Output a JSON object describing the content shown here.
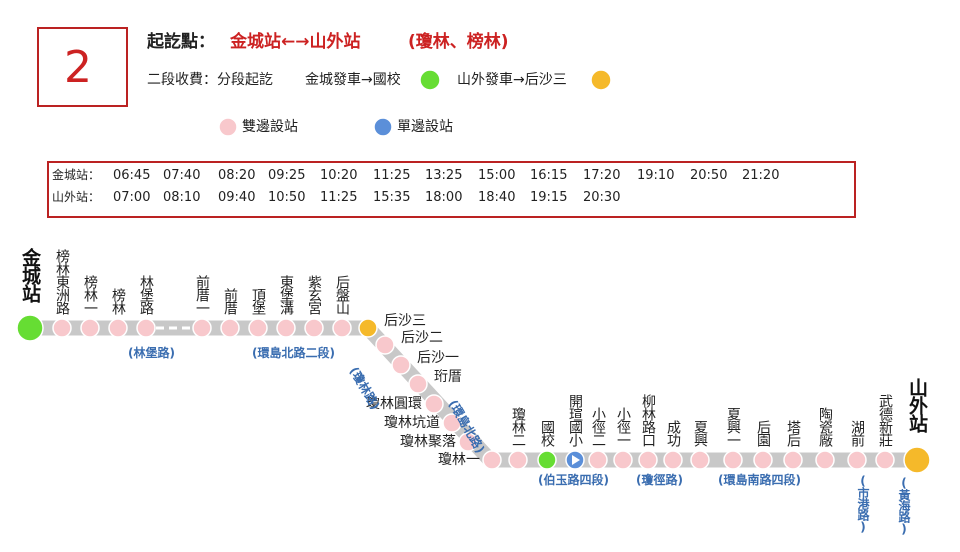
{
  "header": {
    "route": "2",
    "start_label": "起訖點：",
    "route_name": "金城站←→山外站",
    "via": "(瓊林、榜林)"
  },
  "fare": {
    "label": "二段收費：分段起訖",
    "zone1": "金城發車→國校",
    "zone1_color": "#66dd33",
    "zone2": "山外發車→后沙三",
    "zone2_color": "#f5b92a"
  },
  "legend": {
    "both": "雙邊設站",
    "both_color": "#f8c8cc",
    "single": "單邊設站",
    "single_color": "#5b8fd9"
  },
  "schedule": [
    {
      "station": "金城站：",
      "times": [
        "06:45",
        "07:40",
        "08:20",
        "09:25",
        "10:20",
        "11:25",
        "13:25",
        "15:00",
        "16:15",
        "17:20",
        "19:10",
        "20:50",
        "21:20"
      ]
    },
    {
      "station": "山外站：",
      "times": [
        "07:00",
        "08:10",
        "09:40",
        "10:50",
        "11:25",
        "15:35",
        "18:00",
        "18:40",
        "19:15",
        "20:30"
      ]
    }
  ],
  "stops": [
    {
      "label": "金城站",
      "color": "#66dd33"
    },
    {
      "label": "榜林東洲路",
      "color": "#f8c8cc"
    },
    {
      "label": "榜林一",
      "color": "#f8c8cc"
    },
    {
      "label": "榜林",
      "color": "#f8c8cc"
    },
    {
      "label": "林堡路",
      "color": "#f8c8cc"
    },
    {
      "label": "前厝一",
      "color": "#f8c8cc"
    },
    {
      "label": "前厝",
      "color": "#f8c8cc"
    },
    {
      "label": "頂堡",
      "color": "#f8c8cc"
    },
    {
      "label": "東堡溝",
      "color": "#f8c8cc"
    },
    {
      "label": "紫玄宮",
      "color": "#f8c8cc"
    },
    {
      "label": "后盤山",
      "color": "#f8c8cc"
    },
    {
      "label": "后沙三",
      "color": "#f5b92a"
    },
    {
      "label": "后沙二",
      "color": "#f8c8cc"
    },
    {
      "label": "后沙一",
      "color": "#f8c8cc"
    },
    {
      "label": "珩厝",
      "color": "#f8c8cc"
    },
    {
      "label": "瓊林圓環",
      "color": "#f8c8cc"
    },
    {
      "label": "瓊林坑道",
      "color": "#f8c8cc"
    },
    {
      "label": "瓊林聚落",
      "color": "#f8c8cc"
    },
    {
      "label": "瓊林一",
      "color": "#f8c8cc"
    },
    {
      "label": "瓊林二",
      "color": "#f8c8cc"
    },
    {
      "label": "國校",
      "color": "#66dd33"
    },
    {
      "label": "開瑄國小",
      "color": "#5b8fd9"
    },
    {
      "label": "小徑二",
      "color": "#f8c8cc"
    },
    {
      "label": "小徑一",
      "color": "#f8c8cc"
    },
    {
      "label": "柳林路口",
      "color": "#f8c8cc"
    },
    {
      "label": "成功",
      "color": "#f8c8cc"
    },
    {
      "label": "夏興",
      "color": "#f8c8cc"
    },
    {
      "label": "夏興一",
      "color": "#f8c8cc"
    },
    {
      "label": "后園",
      "color": "#f8c8cc"
    },
    {
      "label": "塔后",
      "color": "#f8c8cc"
    },
    {
      "label": "陶瓷廠",
      "color": "#f8c8cc"
    },
    {
      "label": "湖前",
      "color": "#f8c8cc"
    },
    {
      "label": "武德新莊",
      "color": "#f8c8cc"
    },
    {
      "label": "山外站",
      "color": "#f5b92a"
    }
  ],
  "roads": [
    "(林堡路)",
    "(環島北路二段)",
    "(瓊林路)",
    "(環島北路)",
    "(伯玉路四段)",
    "(瓊徑路)",
    "(環島南路四段)",
    "(市港路)",
    "(黃海路)"
  ]
}
